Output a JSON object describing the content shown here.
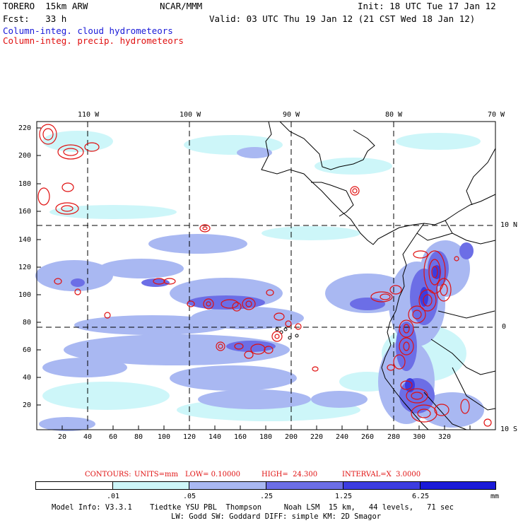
{
  "header": {
    "model": "TORERO  15km ARW",
    "center": "NCAR/MMM",
    "init": "Init: 18 UTC Tue 17 Jan 12",
    "fcst": "Fcst:   33 h",
    "valid": "Valid: 03 UTC Thu 19 Jan 12 (21 CST Wed 18 Jan 12)",
    "field1": "Column-integ. cloud hydrometeors",
    "field2": "Column-integ. precip. hydrometeors"
  },
  "colors": {
    "cloud1": "#cdf6f9",
    "cloud2": "#a9b8f2",
    "cloud3": "#6c6ee6",
    "cloud4": "#3c3ce0",
    "cloud5": "#1a1ad8",
    "precip": "#e01010"
  },
  "map": {
    "lon_labels": [
      "110 W",
      "100 W",
      "90 W",
      "80 W",
      "70 W"
    ],
    "lat_labels": [
      "10 N",
      "0",
      "10 S"
    ],
    "x_ticks": [
      "20",
      "40",
      "60",
      "80",
      "100",
      "120",
      "140",
      "160",
      "180",
      "200",
      "220",
      "240",
      "260",
      "280",
      "300",
      "320"
    ],
    "y_ticks": [
      "220",
      "200",
      "180",
      "160",
      "140",
      "120",
      "100",
      "80",
      "60",
      "40",
      "20"
    ]
  },
  "contours": {
    "label": "CONTOURS:",
    "units": "UNITS=mm",
    "low": "LOW= 0.10000",
    "high": "HIGH=  24.300",
    "interval": "INTERVAL=X  3.0000"
  },
  "colorbar": {
    "labels": [
      ".01",
      ".05",
      ".25",
      "1.25",
      "6.25"
    ],
    "unit": "mm"
  },
  "footer": {
    "line1": "Model Info: V3.3.1    Tiedtke YSU PBL  Thompson     Noah LSM  15 km,   44 levels,   71 sec",
    "line2": "LW: Godd SW: Goddard DIFF: simple KM: 2D Smagor"
  }
}
